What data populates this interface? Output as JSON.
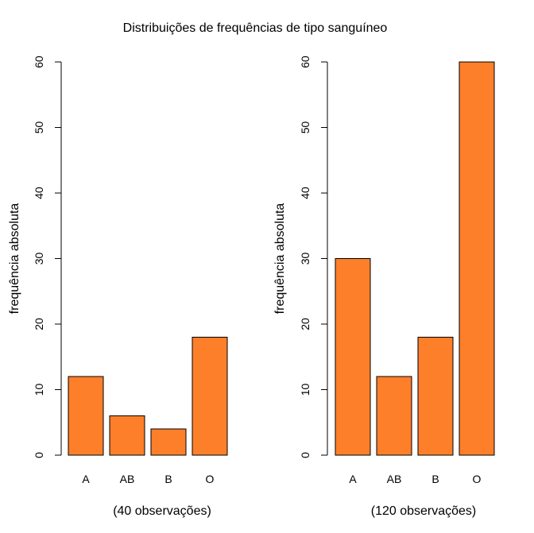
{
  "figure": {
    "title": "Distribuições de frequências de tipo sanguíneo"
  },
  "style": {
    "bar_color": "#fd7f2a",
    "bar_stroke": "#000000",
    "background": "#ffffff"
  },
  "chart_data": [
    {
      "type": "bar",
      "title": "",
      "categories": [
        "A",
        "AB",
        "B",
        "O"
      ],
      "values": [
        12,
        6,
        4,
        18
      ],
      "xlabel": "(40 observações)",
      "ylabel": "frequência absoluta",
      "ylim": [
        0,
        60
      ],
      "yticks": [
        "0",
        "10",
        "20",
        "30",
        "40",
        "50",
        "60"
      ],
      "grid": false,
      "legend": "none"
    },
    {
      "type": "bar",
      "title": "",
      "categories": [
        "A",
        "AB",
        "B",
        "O"
      ],
      "values": [
        30,
        12,
        18,
        60
      ],
      "xlabel": "(120 observações)",
      "ylabel": "frequência absoluta",
      "ylim": [
        0,
        60
      ],
      "yticks": [
        "0",
        "10",
        "20",
        "30",
        "40",
        "50",
        "60"
      ],
      "grid": false,
      "legend": "none"
    }
  ]
}
